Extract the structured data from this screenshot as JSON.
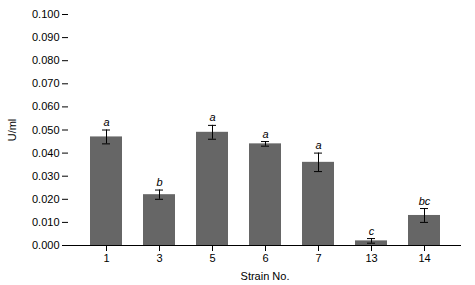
{
  "chart_data": {
    "type": "bar",
    "categories": [
      "1",
      "3",
      "5",
      "6",
      "7",
      "13",
      "14"
    ],
    "values": [
      0.047,
      0.022,
      0.049,
      0.044,
      0.036,
      0.002,
      0.013
    ],
    "errors": [
      0.003,
      0.002,
      0.003,
      0.001,
      0.004,
      0.001,
      0.003
    ],
    "letters": [
      "a",
      "b",
      "a",
      "a",
      "a",
      "c",
      "bc"
    ],
    "color": "#666666",
    "xlabel": "Strain No.",
    "ylabel": "U/ml",
    "ylim": [
      0.0,
      0.1
    ],
    "yticks": [
      {
        "value": 0.0,
        "label": "0.000"
      },
      {
        "value": 0.01,
        "label": "0.010"
      },
      {
        "value": 0.02,
        "label": "0.020"
      },
      {
        "value": 0.03,
        "label": "0.030"
      },
      {
        "value": 0.04,
        "label": "0.040"
      },
      {
        "value": 0.05,
        "label": "0.050"
      },
      {
        "value": 0.06,
        "label": "0.060"
      },
      {
        "value": 0.07,
        "label": "0.070"
      },
      {
        "value": 0.08,
        "label": "0.080"
      },
      {
        "value": 0.09,
        "label": "0.090"
      },
      {
        "value": 0.1,
        "label": "0.100"
      }
    ],
    "grid": false
  }
}
